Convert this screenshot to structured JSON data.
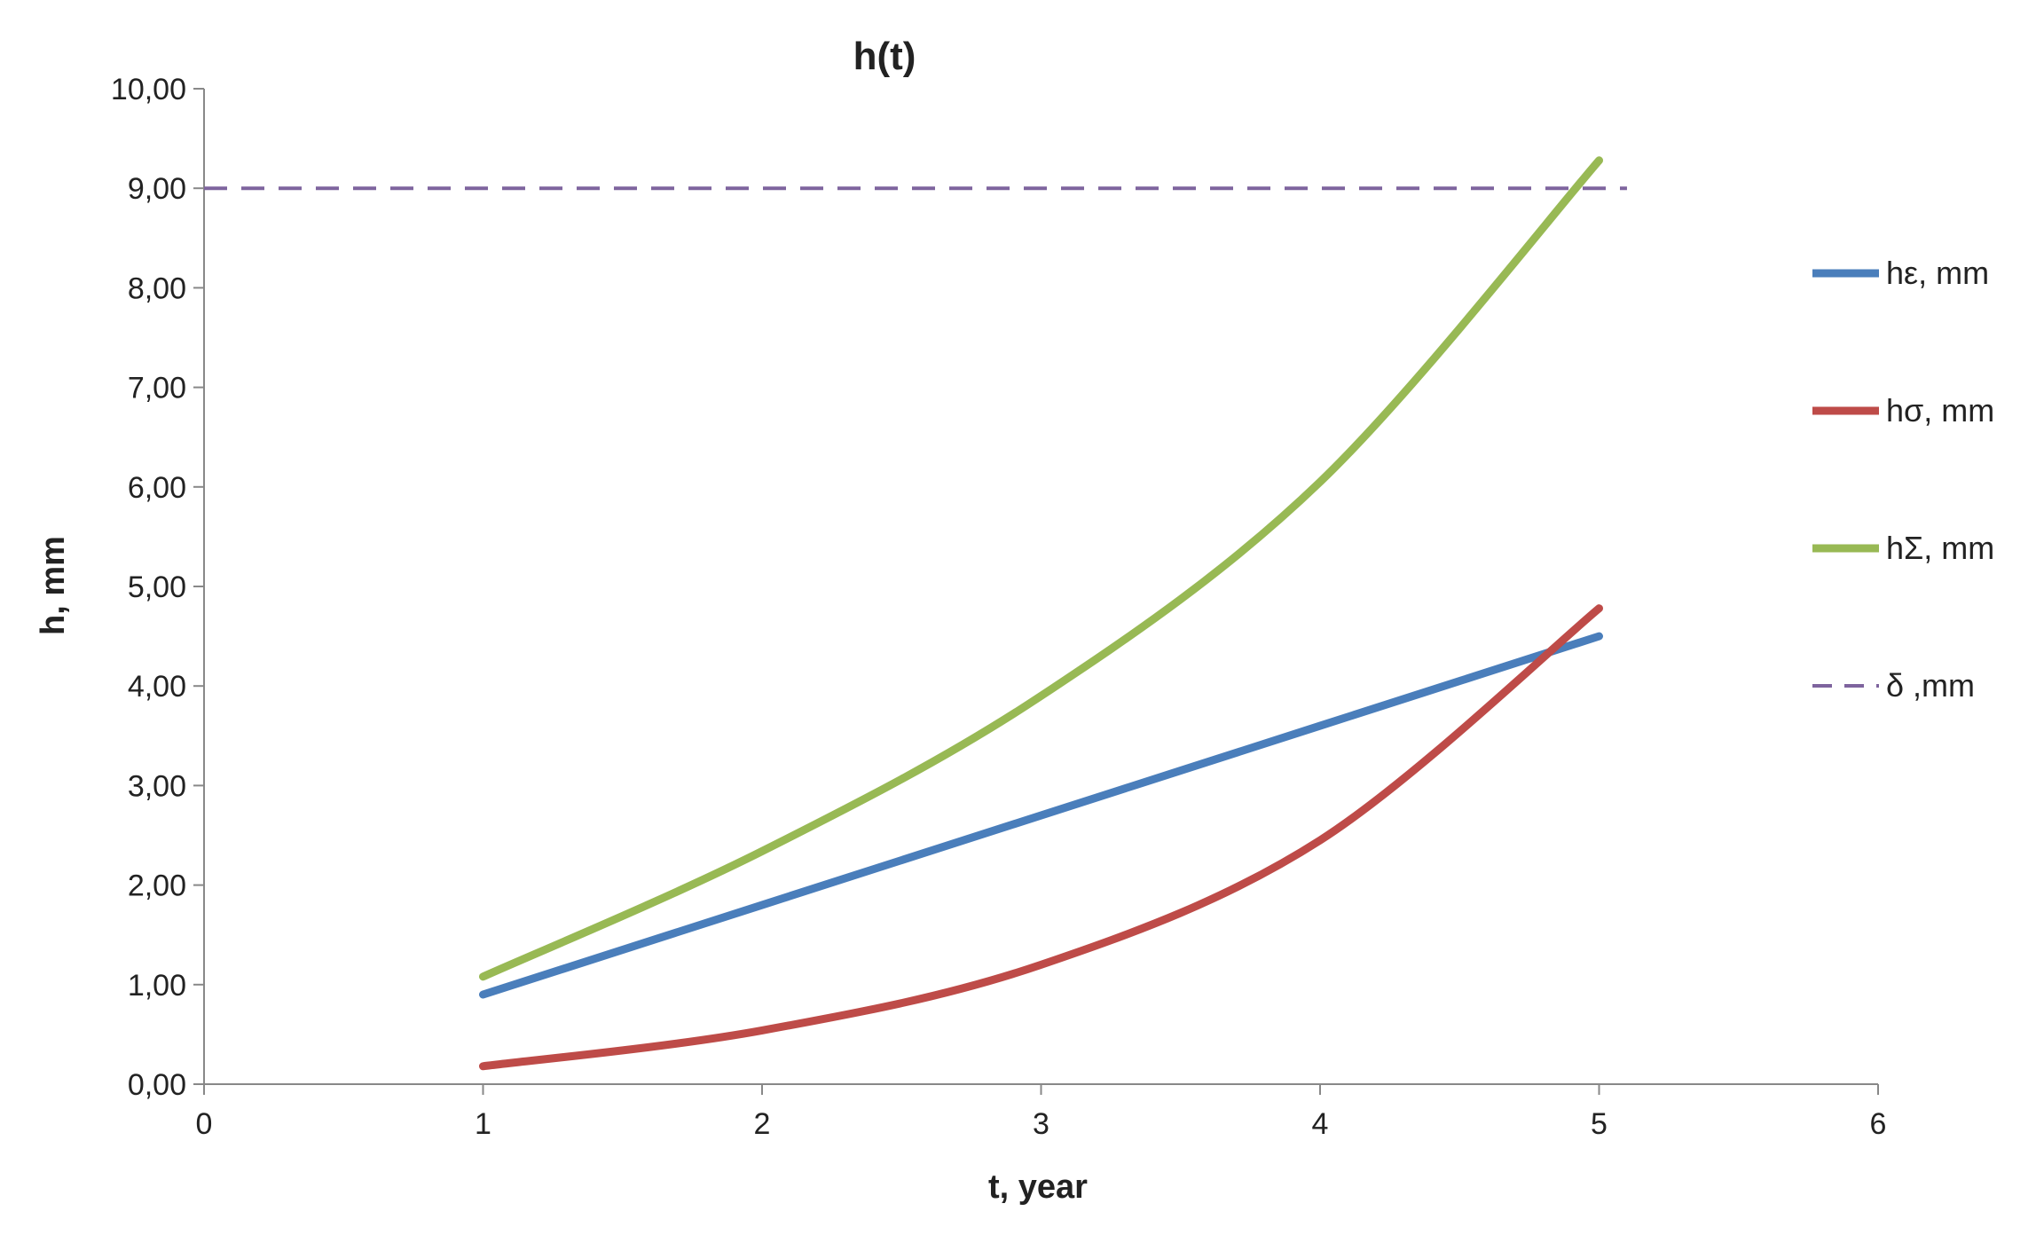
{
  "chart_data": {
    "type": "line",
    "title": "h(t)",
    "xlabel": "t, year",
    "ylabel": "h, mm",
    "xlim": [
      0,
      6
    ],
    "ylim": [
      0,
      10
    ],
    "xticks": [
      "0",
      "1",
      "2",
      "3",
      "4",
      "5",
      "6"
    ],
    "yticks": [
      "0,00",
      "1,00",
      "2,00",
      "3,00",
      "4,00",
      "5,00",
      "6,00",
      "7,00",
      "8,00",
      "9,00",
      "10,00"
    ],
    "grid": false,
    "legend_position": "right",
    "series": [
      {
        "name": "hε, mm",
        "color": "#4a7ebb",
        "dash": false,
        "x": [
          1,
          2,
          3,
          4,
          5
        ],
        "y": [
          0.9,
          1.8,
          2.7,
          3.6,
          4.5
        ]
      },
      {
        "name": "hσ, mm",
        "color": "#be4b48",
        "dash": false,
        "x": [
          1,
          2,
          3,
          4,
          5
        ],
        "y": [
          0.18,
          0.54,
          1.2,
          2.45,
          4.78
        ]
      },
      {
        "name": "hΣ, mm",
        "color": "#98b954",
        "dash": false,
        "x": [
          1,
          2,
          3,
          4,
          5
        ],
        "y": [
          1.08,
          2.34,
          3.9,
          6.05,
          9.28
        ]
      },
      {
        "name": "δ ,mm",
        "color": "#7e649e",
        "dash": true,
        "x": [
          0,
          5.1
        ],
        "y": [
          9.0,
          9.0
        ]
      }
    ]
  }
}
